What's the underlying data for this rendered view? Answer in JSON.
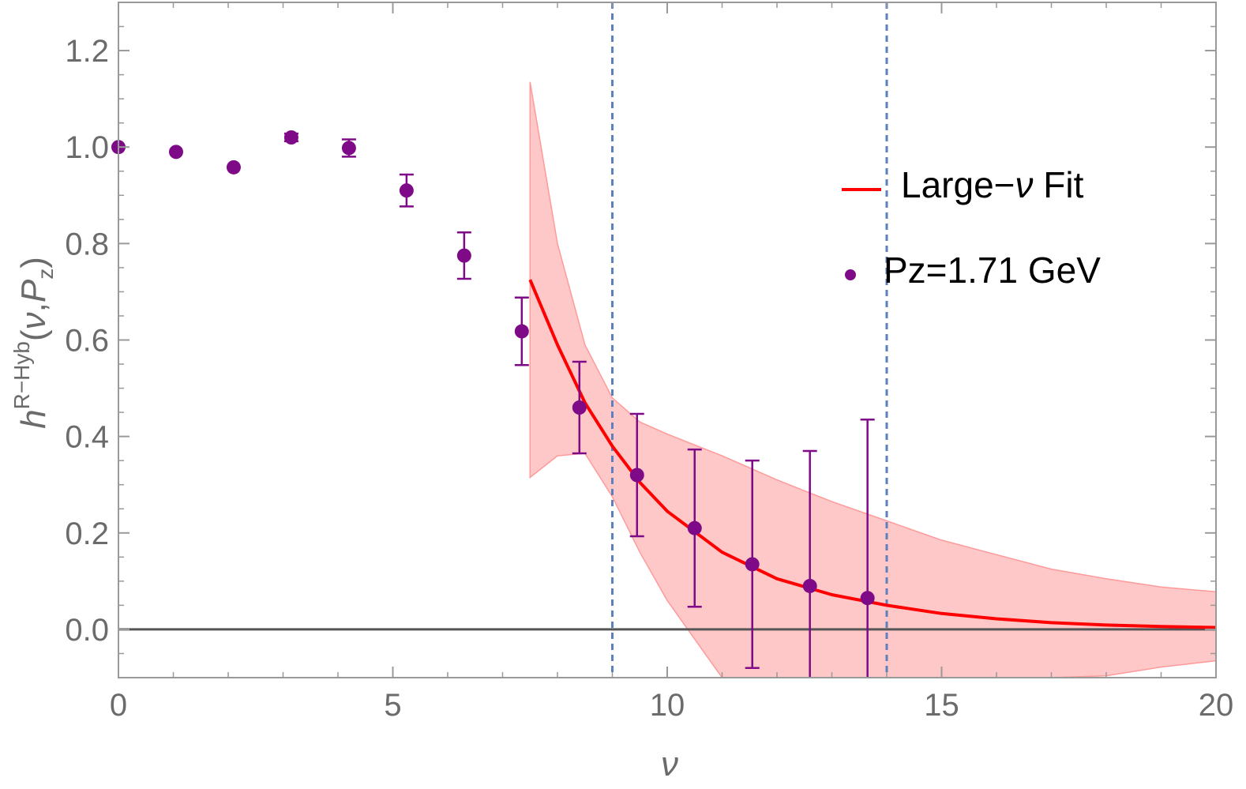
{
  "chart_data": {
    "type": "scatter",
    "xlabel": "ν",
    "ylabel": {
      "base": "h",
      "superscript": "R−Hyb",
      "open": "(",
      "arg1": "ν",
      "comma": ",",
      "arg2": "P",
      "arg2_sub": "z",
      "close": ")"
    },
    "xlim": [
      0,
      20
    ],
    "ylim": [
      -0.1,
      1.3
    ],
    "x_ticks": [
      0,
      5,
      10,
      15,
      20
    ],
    "x_tick_labels": [
      "0",
      "5",
      "10",
      "15",
      "20"
    ],
    "y_ticks": [
      0.0,
      0.2,
      0.4,
      0.6,
      0.8,
      1.0,
      1.2
    ],
    "y_tick_labels": [
      "0.0",
      "0.2",
      "0.4",
      "0.6",
      "0.8",
      "1.0",
      "1.2"
    ],
    "vertical_lines": [
      9,
      14
    ],
    "reference_line_y": 0,
    "legend_position": "upper-right",
    "series": [
      {
        "name": "Pz=1.71 GeV",
        "kind": "points-with-errorbars",
        "color": "#7f0a87",
        "points": [
          {
            "x": 0.0,
            "y": 1.0,
            "err": 0.0
          },
          {
            "x": 1.05,
            "y": 0.99,
            "err": 0.0
          },
          {
            "x": 2.1,
            "y": 0.958,
            "err": 0.0
          },
          {
            "x": 3.15,
            "y": 1.02,
            "err": 0.008
          },
          {
            "x": 4.2,
            "y": 0.998,
            "err": 0.018
          },
          {
            "x": 5.25,
            "y": 0.91,
            "err": 0.033
          },
          {
            "x": 6.3,
            "y": 0.775,
            "err": 0.048
          },
          {
            "x": 7.35,
            "y": 0.618,
            "err": 0.07
          },
          {
            "x": 8.4,
            "y": 0.46,
            "err": 0.095
          },
          {
            "x": 9.45,
            "y": 0.32,
            "err": 0.127
          },
          {
            "x": 10.5,
            "y": 0.21,
            "err": 0.163
          },
          {
            "x": 11.55,
            "y": 0.135,
            "err": 0.215
          },
          {
            "x": 12.6,
            "y": 0.09,
            "err": 0.28
          },
          {
            "x": 13.65,
            "y": 0.065,
            "err": 0.37
          }
        ]
      },
      {
        "name": "Large−ν Fit",
        "legend_main": "Large−",
        "legend_var": "ν",
        "legend_tail": " Fit",
        "kind": "fit-curve-with-band",
        "color": "#ff0000",
        "band_color": "#ff9a9a",
        "x": [
          7.5,
          8.0,
          8.5,
          9.0,
          9.5,
          10.0,
          11.0,
          12.0,
          13.0,
          14.0,
          15.0,
          16.0,
          17.0,
          18.0,
          19.0,
          20.0
        ],
        "y": [
          0.725,
          0.59,
          0.47,
          0.38,
          0.305,
          0.245,
          0.16,
          0.105,
          0.072,
          0.05,
          0.033,
          0.022,
          0.014,
          0.009,
          0.006,
          0.004
        ],
        "upper": [
          1.135,
          0.8,
          0.59,
          0.48,
          0.43,
          0.405,
          0.36,
          0.31,
          0.265,
          0.225,
          0.185,
          0.155,
          0.125,
          0.105,
          0.088,
          0.078
        ],
        "lower": [
          0.315,
          0.36,
          0.365,
          0.275,
          0.16,
          0.06,
          -0.1,
          -0.1,
          -0.1,
          -0.1,
          -0.1,
          -0.1,
          -0.1,
          -0.096,
          -0.078,
          -0.065
        ]
      }
    ]
  }
}
